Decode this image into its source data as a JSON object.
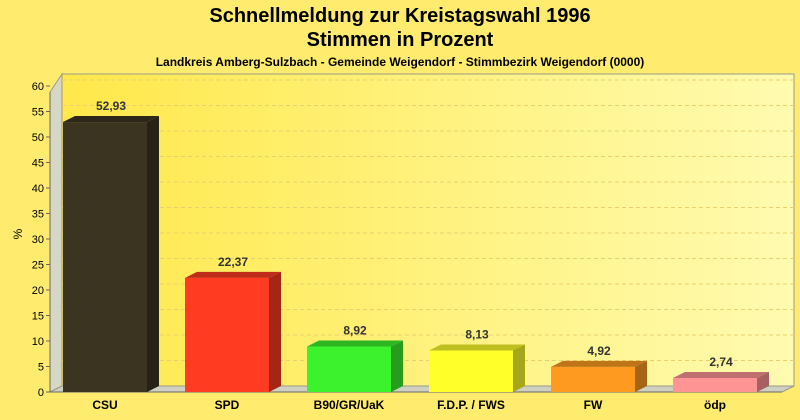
{
  "chart_data": {
    "type": "bar",
    "title_line1": "Schnellmeldung zur Kreistagswahl 1996",
    "title_line2": "Stimmen in Prozent",
    "subtitle": "Landkreis Amberg-Sulzbach - Gemeinde Weigendorf - Stimmbezirk Weigendorf (0000)",
    "ylabel": "%",
    "ylim": [
      0,
      60
    ],
    "yticks": [
      "0",
      "5",
      "10",
      "15",
      "20",
      "25",
      "30",
      "35",
      "40",
      "45",
      "50",
      "55",
      "60"
    ],
    "categories": [
      "CSU",
      "SPD",
      "B90/GR/UaK",
      "F.D.P. / FWS",
      "FW",
      "ödp"
    ],
    "values": [
      52.93,
      22.37,
      8.92,
      8.13,
      4.92,
      2.74
    ],
    "value_labels": [
      "52,93",
      "22,37",
      "8,92",
      "8,13",
      "4,92",
      "2,74"
    ],
    "colors": [
      "#3a3420",
      "#ff3b22",
      "#3cf22c",
      "#ffff2a",
      "#ff9a20",
      "#ff9494"
    ],
    "grid": true
  }
}
